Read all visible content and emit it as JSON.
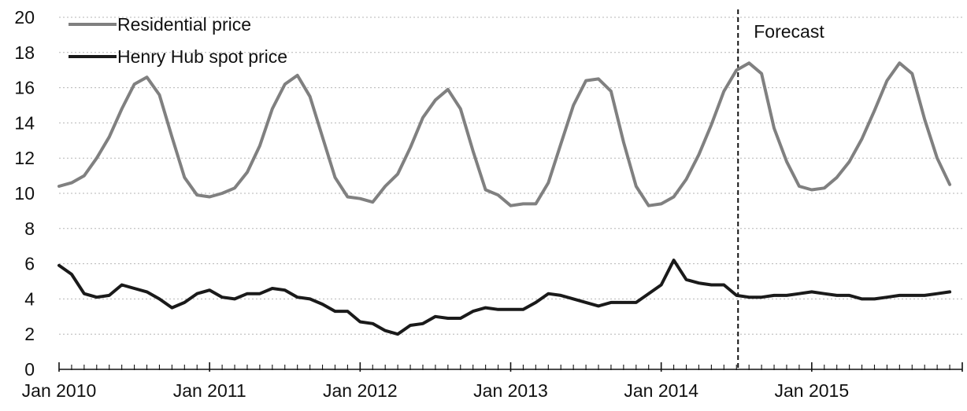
{
  "chart_data": {
    "type": "line",
    "title": "",
    "xlabel": "",
    "ylabel": "",
    "ylim": [
      0,
      20
    ],
    "y_ticks": [
      "0",
      "2",
      "4",
      "6",
      "8",
      "10",
      "12",
      "14",
      "16",
      "18",
      "20"
    ],
    "x_tick_labels": [
      "Jan 2010",
      "Jan 2011",
      "Jan 2012",
      "Jan 2013",
      "Jan 2014",
      "Jan 2015"
    ],
    "x_start": "2010-01",
    "x_end": "2015-12",
    "grid": true,
    "legend_position": "top-left",
    "forecast_start": "2014-07",
    "annotation": "Forecast",
    "series": [
      {
        "name": "Residential price",
        "color": "#808080",
        "values": [
          10.4,
          10.6,
          11.0,
          12.0,
          13.2,
          14.8,
          16.2,
          16.6,
          15.6,
          13.2,
          10.9,
          9.9,
          9.8,
          10.0,
          10.3,
          11.2,
          12.7,
          14.8,
          16.2,
          16.7,
          15.5,
          13.2,
          10.9,
          9.8,
          9.7,
          9.5,
          10.4,
          11.1,
          12.6,
          14.3,
          15.3,
          15.9,
          14.8,
          12.4,
          10.2,
          9.9,
          9.3,
          9.4,
          9.4,
          10.6,
          12.8,
          15.0,
          16.4,
          16.5,
          15.8,
          12.9,
          10.4,
          9.3,
          9.4,
          9.8,
          10.8,
          12.2,
          13.9,
          15.8,
          17.0,
          17.4,
          16.8,
          13.7,
          11.8,
          10.4,
          10.2,
          10.3,
          10.9,
          11.8,
          13.1,
          14.7,
          16.4,
          17.4,
          16.8,
          14.2,
          12.0,
          10.5
        ]
      },
      {
        "name": "Henry Hub spot price",
        "color": "#1a1a1a",
        "values": [
          5.9,
          5.4,
          4.3,
          4.1,
          4.2,
          4.8,
          4.6,
          4.4,
          4.0,
          3.5,
          3.8,
          4.3,
          4.5,
          4.1,
          4.0,
          4.3,
          4.3,
          4.6,
          4.5,
          4.1,
          4.0,
          3.7,
          3.3,
          3.3,
          2.7,
          2.6,
          2.2,
          2.0,
          2.5,
          2.6,
          3.0,
          2.9,
          2.9,
          3.3,
          3.5,
          3.4,
          3.4,
          3.4,
          3.8,
          4.3,
          4.2,
          4.0,
          3.8,
          3.6,
          3.8,
          3.8,
          3.8,
          4.3,
          4.8,
          6.2,
          5.1,
          4.9,
          4.8,
          4.8,
          4.2,
          4.1,
          4.1,
          4.2,
          4.2,
          4.3,
          4.4,
          4.3,
          4.2,
          4.2,
          4.0,
          4.0,
          4.1,
          4.2,
          4.2,
          4.2,
          4.3,
          4.4
        ]
      }
    ]
  }
}
